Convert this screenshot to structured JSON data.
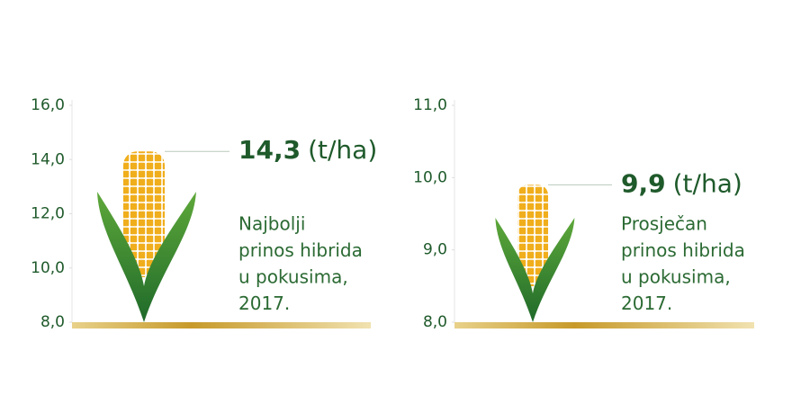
{
  "chart_data": [
    {
      "type": "pictograph",
      "values": [
        14.3
      ],
      "value_labels": [
        "14,3"
      ],
      "unit": "(t/ha)",
      "caption": [
        "Najbolji",
        "prinos hibrida",
        "u pokusima,",
        "2017."
      ],
      "ylim": [
        8,
        16
      ],
      "yticks": [
        {
          "value": 8,
          "label": "8,0"
        },
        {
          "value": 10,
          "label": "10,0"
        },
        {
          "value": 12,
          "label": "12,0"
        },
        {
          "value": 14,
          "label": "14,0"
        },
        {
          "value": 16,
          "label": "16,0"
        }
      ],
      "color": "#f2b21e"
    },
    {
      "type": "pictograph",
      "values": [
        9.9
      ],
      "value_labels": [
        "9,9"
      ],
      "unit": "(t/ha)",
      "caption": [
        "Prosječan",
        "prinos hibrida",
        "u pokusima,",
        "2017."
      ],
      "ylim": [
        8,
        11
      ],
      "yticks": [
        {
          "value": 8,
          "label": "8,0"
        },
        {
          "value": 9,
          "label": "9,0"
        },
        {
          "value": 10,
          "label": "10,0"
        },
        {
          "value": 11,
          "label": "11,0"
        }
      ],
      "color": "#f2b21e"
    }
  ]
}
